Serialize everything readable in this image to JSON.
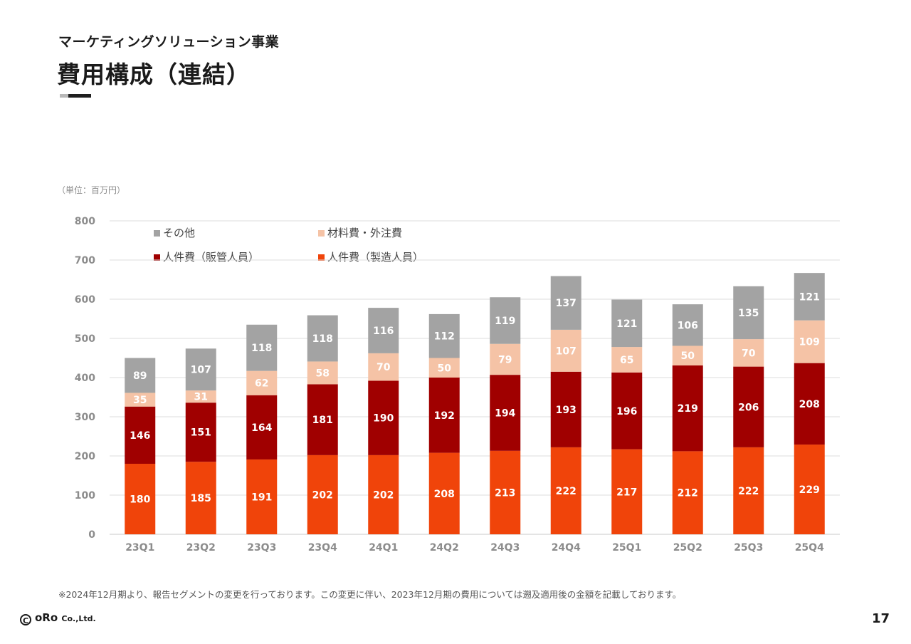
{
  "header": {
    "subtitle": "マーケティングソリューション事業",
    "title": "費用構成（連結）"
  },
  "unit_label": "（単位：百万円）",
  "footnote": "※2024年12月期より、報告セグメントの変更を行っております。この変更に伴い、2023年12月期の費用については遡及適用後の金額を記載しております。",
  "footer": {
    "copyright_symbol": "C",
    "company": "oRo",
    "company_suffix": "Co.,Ltd.",
    "page_number": "17"
  },
  "chart_data": {
    "type": "bar",
    "stacked": true,
    "categories": [
      "23Q1",
      "23Q2",
      "23Q3",
      "23Q4",
      "24Q1",
      "24Q2",
      "24Q3",
      "24Q4",
      "25Q1",
      "25Q2",
      "25Q3",
      "25Q4"
    ],
    "ylim": [
      0,
      800
    ],
    "yticks": [
      0,
      100,
      200,
      300,
      400,
      500,
      600,
      700,
      800
    ],
    "grid": true,
    "series": [
      {
        "name": "人件費（製造人員）",
        "color": "#f0440a",
        "values": [
          180,
          185,
          191,
          202,
          202,
          208,
          213,
          222,
          217,
          212,
          222,
          229
        ]
      },
      {
        "name": "人件費（販管人員）",
        "color": "#a00000",
        "values": [
          146,
          151,
          164,
          181,
          190,
          192,
          194,
          193,
          196,
          219,
          206,
          208
        ]
      },
      {
        "name": "材料費・外注費",
        "color": "#f5c3a6",
        "values": [
          35,
          31,
          62,
          58,
          70,
          50,
          79,
          107,
          65,
          50,
          70,
          109
        ]
      },
      {
        "name": "その他",
        "color": "#a3a3a3",
        "values": [
          89,
          107,
          118,
          118,
          116,
          112,
          119,
          137,
          121,
          106,
          135,
          121
        ]
      }
    ]
  }
}
